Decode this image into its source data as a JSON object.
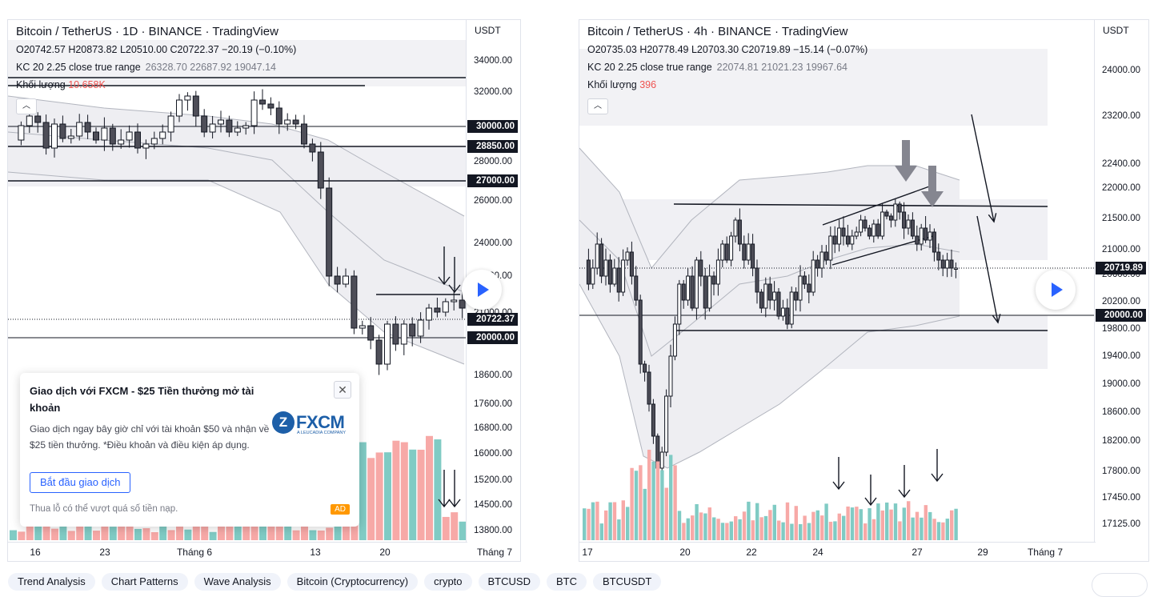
{
  "chart1": {
    "title": "Bitcoin / TetherUS · 1D · BINANCE · TradingView",
    "ohlc": "O20742.57  H20873.82  L20510.00  C20722.37  −20.19 (−0.10%)",
    "kc_label": "KC 20 2.25 close true range",
    "kc_values": "26328.70   22687.92   19047.14",
    "volume_label": "Khối lượng",
    "volume_value": "10.658K",
    "unit": "USDT",
    "ticks": [
      {
        "label": "34000.00",
        "y": 51
      },
      {
        "label": "32000.00",
        "y": 90
      },
      {
        "label": "28000.00",
        "y": 177
      },
      {
        "label": "26000.00",
        "y": 226
      },
      {
        "label": "24000.00",
        "y": 279
      },
      {
        "label": "22500.00",
        "y": 320
      },
      {
        "label": "21000.00",
        "y": 366
      },
      {
        "label": "18600.00",
        "y": 444
      },
      {
        "label": "17600.00",
        "y": 480
      },
      {
        "label": "16800.00",
        "y": 510
      },
      {
        "label": "16000.00",
        "y": 542
      },
      {
        "label": "15200.00",
        "y": 575
      },
      {
        "label": "14500.00",
        "y": 606
      },
      {
        "label": "13800.00",
        "y": 638
      }
    ],
    "price_boxes": [
      {
        "label": "30000.00",
        "y": 133
      },
      {
        "label": "28850.00",
        "y": 158
      },
      {
        "label": "27000.00",
        "y": 201
      },
      {
        "label": "20722.37",
        "y": 374
      },
      {
        "label": "20000.00",
        "y": 397
      }
    ],
    "time_labels": [
      {
        "label": "16",
        "x": 34
      },
      {
        "label": "23",
        "x": 121
      },
      {
        "label": "Tháng 6",
        "x": 233
      },
      {
        "label": "13",
        "x": 384
      },
      {
        "label": "20",
        "x": 471
      },
      {
        "label": "Tháng 7",
        "x": 608
      }
    ]
  },
  "chart2": {
    "title": "Bitcoin / TetherUS · 4h · BINANCE · TradingView",
    "ohlc": "O20735.03  H20778.49  L20703.30  C20719.89  −15.14 (−0.07%)",
    "kc_label": "KC 20 2.25 close true range",
    "kc_values": "22074.81   21021.23   19967.64",
    "volume_label": "Khối lượng",
    "volume_value": "396",
    "unit": "USDT",
    "ticks": [
      {
        "label": "24000.00",
        "y": 63
      },
      {
        "label": "23200.00",
        "y": 120
      },
      {
        "label": "22400.00",
        "y": 180
      },
      {
        "label": "22000.00",
        "y": 210
      },
      {
        "label": "21500.00",
        "y": 248
      },
      {
        "label": "21000.00",
        "y": 287
      },
      {
        "label": "20600.00",
        "y": 318
      },
      {
        "label": "20200.00",
        "y": 352
      },
      {
        "label": "19800.00",
        "y": 386
      },
      {
        "label": "19400.00",
        "y": 420
      },
      {
        "label": "19000.00",
        "y": 455
      },
      {
        "label": "18600.00",
        "y": 490
      },
      {
        "label": "18200.00",
        "y": 526
      },
      {
        "label": "17800.00",
        "y": 564
      },
      {
        "label": "17450.00",
        "y": 597
      },
      {
        "label": "17125.00",
        "y": 630
      }
    ],
    "price_boxes": [
      {
        "label": "20719.89",
        "y": 310
      },
      {
        "label": "20000.00",
        "y": 369
      }
    ],
    "time_labels": [
      {
        "label": "17",
        "x": 10
      },
      {
        "label": "20",
        "x": 132
      },
      {
        "label": "22",
        "x": 215
      },
      {
        "label": "24",
        "x": 298
      },
      {
        "label": "27",
        "x": 422
      },
      {
        "label": "29",
        "x": 504
      },
      {
        "label": "Tháng 7",
        "x": 582
      }
    ]
  },
  "ad": {
    "title": "Giao dịch với FXCM - $25 Tiền thưởng mở tài khoản",
    "body": "Giao dịch ngay bây giờ chỉ với tài khoản $50 và nhận về $25 tiền thưởng. *Điều khoản và điều kiện áp dụng.",
    "cta": "Bắt đầu giao dịch",
    "footnote": "Thua lỗ có thể vượt quá số tiền nạp.",
    "badge": "AD",
    "logo_mark": "Z",
    "logo_name": "FXCM",
    "logo_sub": "A LEUCADIA COMPANY"
  },
  "tags": [
    "Trend Analysis",
    "Chart Patterns",
    "Wave Analysis",
    "Bitcoin (Cryptocurrency)",
    "crypto",
    "BTCUSD",
    "BTC",
    "BTCUSDT"
  ],
  "colors": {
    "up": "#26a69a",
    "down": "#ef5350",
    "vol_up": "#80cbc4",
    "vol_down": "#f7a9a7",
    "accent": "#2962ff"
  }
}
